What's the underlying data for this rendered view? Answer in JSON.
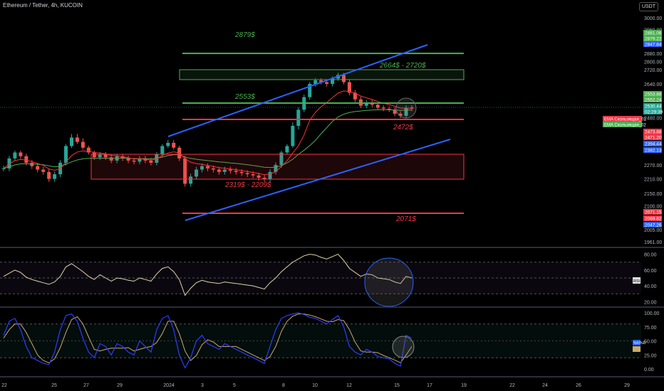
{
  "header": {
    "title": "Ethereum / Tether, 4h, KUCOIN",
    "currency": "USDT"
  },
  "colors": {
    "up": "#26a69a",
    "down": "#ef5350",
    "ema1": "#ff3030",
    "ema2": "#4caf50",
    "green": "#4caf50",
    "red": "#f23645",
    "blue": "#2962ff",
    "rsi": "#e0d5a8",
    "k": "#2d3cff",
    "d": "#c8a970"
  },
  "chart_data": [
    {
      "type": "candlestick",
      "title": "Ethereum / Tether, 4h, KUCOIN",
      "ylim": [
        1961,
        3000
      ],
      "y_ticks": [
        3000,
        2960,
        2880,
        2800,
        2720,
        2640,
        2480,
        2270,
        2210,
        2150,
        2100,
        2050,
        2005,
        1961
      ],
      "y_tick_labels": [
        "3000.00",
        "2960.00",
        "2880.00",
        "2800.00",
        "2720.00",
        "2640.00",
        "2480.00",
        "2270.00",
        "2210.00",
        "2150.00",
        "2100.00",
        "2050.00",
        "2005.00",
        "1961.00"
      ],
      "x_labels": [
        "22",
        "25",
        "27",
        "29",
        "2024",
        "3",
        "5",
        "8",
        "10",
        "12",
        "15",
        "17",
        "19",
        "22",
        "24",
        "26",
        "29"
      ],
      "close_series": [
        2255,
        2300,
        2330,
        2310,
        2280,
        2265,
        2250,
        2240,
        2210,
        2230,
        2280,
        2370,
        2410,
        2395,
        2360,
        2330,
        2305,
        2320,
        2305,
        2290,
        2310,
        2300,
        2290,
        2285,
        2300,
        2290,
        2280,
        2320,
        2370,
        2390,
        2360,
        2300,
        2190,
        2220,
        2250,
        2265,
        2255,
        2250,
        2240,
        2250,
        2245,
        2240,
        2235,
        2230,
        2225,
        2215,
        2210,
        2240,
        2270,
        2330,
        2370,
        2450,
        2520,
        2580,
        2640,
        2660,
        2650,
        2640,
        2670,
        2690,
        2650,
        2600,
        2570,
        2540,
        2555,
        2545,
        2530,
        2525,
        2520,
        2500,
        2490,
        2530,
        2525
      ],
      "ema_fast": [
        2255,
        2275,
        2290,
        2295,
        2292,
        2285,
        2277,
        2268,
        2253,
        2247,
        2254,
        2283,
        2313,
        2333,
        2340,
        2337,
        2330,
        2327,
        2321,
        2313,
        2312,
        2308,
        2303,
        2297,
        2298,
        2296,
        2292,
        2298,
        2313,
        2327,
        2334,
        2327,
        2298,
        2283,
        2276,
        2273,
        2268,
        2264,
        2258,
        2256,
        2253,
        2250,
        2246,
        2242,
        2238,
        2233,
        2228,
        2231,
        2241,
        2263,
        2289,
        2327,
        2372,
        2419,
        2469,
        2507,
        2535,
        2555,
        2578,
        2598,
        2608,
        2606,
        2598,
        2585,
        2577,
        2569,
        2560,
        2552,
        2546,
        2537,
        2528,
        2528,
        2527
      ],
      "ema_slow": [
        2255,
        2262,
        2270,
        2275,
        2276,
        2275,
        2273,
        2271,
        2266,
        2262,
        2264,
        2273,
        2284,
        2293,
        2298,
        2300,
        2300,
        2301,
        2301,
        2300,
        2301,
        2301,
        2300,
        2299,
        2299,
        2299,
        2298,
        2300,
        2306,
        2313,
        2317,
        2317,
        2306,
        2300,
        2296,
        2293,
        2290,
        2287,
        2284,
        2282,
        2279,
        2277,
        2274,
        2271,
        2268,
        2264,
        2260,
        2259,
        2260,
        2267,
        2279,
        2296,
        2318,
        2344,
        2373,
        2400,
        2423,
        2444,
        2465,
        2484,
        2498,
        2506,
        2511,
        2514,
        2517,
        2519,
        2520,
        2520,
        2520,
        2519,
        2517,
        2518,
        2519
      ],
      "series": [
        {
          "name": "EMA Crossover_01",
          "label": "EMA Скользящая_01"
        },
        {
          "name": "EMA Crossover_02",
          "label": "EMA Скользящая_02"
        }
      ],
      "price_tags": [
        {
          "text": "2881.08",
          "color": "#4caf50"
        },
        {
          "text": "2879.22",
          "color": "#4caf50"
        },
        {
          "text": "2847.84",
          "color": "#2962ff"
        },
        {
          "text": "2553.88",
          "color": "#4caf50"
        },
        {
          "text": "2552.24",
          "color": "#4caf50"
        },
        {
          "text": "2530.44",
          "color": "#26a69a"
        },
        {
          "text": "02:29:39",
          "color": "#26a69a"
        },
        {
          "text": "2473.88",
          "color": "#f23645"
        },
        {
          "text": "2471.20",
          "color": "#f23645"
        },
        {
          "text": "2394.44",
          "color": "#2962ff"
        },
        {
          "text": "2382.13",
          "color": "#2962ff"
        },
        {
          "text": "2071.15",
          "color": "#f23645"
        },
        {
          "text": "2069.82",
          "color": "#f23645"
        },
        {
          "text": "2047.26",
          "color": "#2962ff"
        }
      ],
      "annotations": [
        {
          "text": "2879$",
          "level": 2879,
          "color": "#4caf50"
        },
        {
          "text": "2664$ - 2720$",
          "level": 2692,
          "color": "#4caf50"
        },
        {
          "text": "2553$",
          "level": 2553,
          "color": "#4caf50"
        },
        {
          "text": "2472$",
          "level": 2472,
          "color": "#f23645"
        },
        {
          "text": "2319$ - 2209$",
          "level": 2264,
          "color": "#f23645"
        },
        {
          "text": "2071$",
          "level": 2071,
          "color": "#f23645"
        }
      ],
      "levels": [
        {
          "value": 2879,
          "color": "#4caf50"
        },
        {
          "value": 2553,
          "color": "#4caf50"
        },
        {
          "value": 2472,
          "color": "#f23645"
        },
        {
          "value": 2071,
          "color": "#f23645"
        }
      ],
      "zones": [
        {
          "from": 2664,
          "to": 2720,
          "color": "#4caf50"
        },
        {
          "from": 2209,
          "to": 2319,
          "color": "#f23645"
        }
      ]
    },
    {
      "type": "line",
      "name": "RSI",
      "badge": "RSI",
      "ylim": [
        15,
        85
      ],
      "y_ticks": [
        80,
        60,
        40,
        20
      ],
      "y_tick_labels": [
        "80.00",
        "60.00",
        "40.00",
        "20.00"
      ],
      "bands": [
        30,
        50,
        70
      ],
      "values": [
        52,
        56,
        60,
        57,
        51,
        48,
        46,
        44,
        42,
        45,
        52,
        64,
        68,
        63,
        58,
        52,
        48,
        54,
        50,
        46,
        50,
        49,
        47,
        46,
        50,
        48,
        46,
        55,
        62,
        64,
        58,
        48,
        28,
        37,
        44,
        47,
        45,
        44,
        43,
        45,
        44,
        43,
        42,
        41,
        40,
        38,
        36,
        44,
        50,
        58,
        64,
        70,
        74,
        78,
        80,
        79,
        76,
        74,
        77,
        80,
        72,
        62,
        57,
        52,
        55,
        54,
        50,
        49,
        48,
        45,
        43,
        52,
        50
      ]
    },
    {
      "type": "line",
      "name": "Stochastic RSI",
      "badge": "%K/%D",
      "ylim": [
        0,
        100
      ],
      "y_ticks": [
        100,
        75,
        50,
        25,
        0
      ],
      "y_tick_labels": [
        "100.00",
        "75.00",
        "50.00",
        "25.00",
        "0.00"
      ],
      "bands": [
        20,
        80
      ],
      "series": [
        {
          "name": "%K",
          "values": [
            60,
            85,
            90,
            70,
            40,
            20,
            15,
            10,
            8,
            30,
            70,
            95,
            98,
            85,
            55,
            30,
            20,
            45,
            40,
            25,
            45,
            40,
            30,
            25,
            50,
            40,
            30,
            70,
            90,
            95,
            70,
            25,
            2,
            20,
            50,
            60,
            45,
            40,
            35,
            45,
            40,
            35,
            30,
            25,
            20,
            15,
            10,
            40,
            70,
            90,
            95,
            98,
            100,
            97,
            92,
            90,
            85,
            80,
            88,
            95,
            75,
            40,
            30,
            25,
            35,
            30,
            22,
            20,
            18,
            10,
            5,
            60,
            55
          ]
        },
        {
          "name": "%D",
          "values": [
            55,
            70,
            80,
            80,
            65,
            45,
            25,
            15,
            11,
            18,
            38,
            65,
            88,
            93,
            80,
            57,
            35,
            32,
            35,
            37,
            37,
            37,
            38,
            32,
            35,
            38,
            40,
            47,
            63,
            85,
            85,
            63,
            32,
            15,
            24,
            43,
            52,
            48,
            40,
            40,
            40,
            40,
            35,
            30,
            25,
            20,
            15,
            22,
            40,
            67,
            85,
            94,
            98,
            98,
            96,
            93,
            89,
            85,
            84,
            88,
            86,
            70,
            48,
            32,
            30,
            30,
            29,
            24,
            20,
            16,
            11,
            25,
            40
          ]
        }
      ]
    }
  ]
}
